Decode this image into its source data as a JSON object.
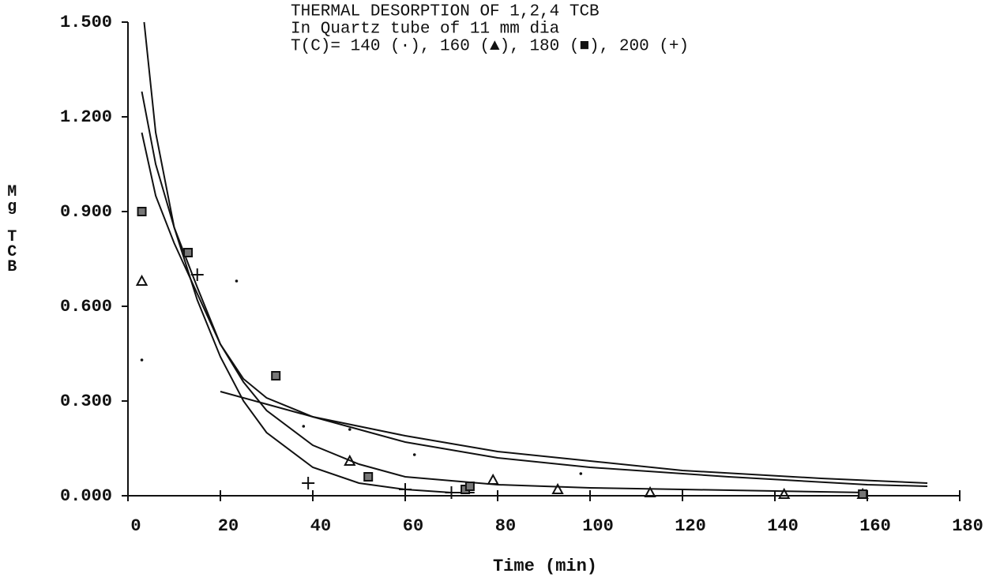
{
  "chart_data": {
    "type": "scatter",
    "title": "THERMAL DESORPTION OF 1,2,4 TCB",
    "subtitle": "In Quartz tube of 11 mm dia",
    "annotation": "T(C)= 140 (·), 160 (▲), 180 (■), 200 (+)",
    "xlabel": "Time (min)",
    "ylabel": "Mg TCB",
    "color": "#111111",
    "xlim": [
      0,
      180
    ],
    "ylim": [
      0,
      1.5
    ],
    "xticks": [
      0,
      20,
      40,
      60,
      80,
      100,
      120,
      140,
      160,
      180
    ],
    "yticks": [
      {
        "value": 0,
        "label": "0.000"
      },
      {
        "value": 0.3,
        "label": "0.300"
      },
      {
        "value": 0.6,
        "label": "0.600"
      },
      {
        "value": 0.9,
        "label": "0.900"
      },
      {
        "value": 1.2,
        "label": "1.200"
      },
      {
        "value": 1.5,
        "label": "1.500"
      }
    ],
    "series": [
      {
        "marker": "dot",
        "x": [
          3,
          23.5,
          38,
          48,
          62,
          98
        ],
        "values": [
          0.43,
          0.68,
          0.22,
          0.21,
          0.13,
          0.07
        ]
      },
      {
        "marker": "triangle",
        "x": [
          3,
          48,
          79,
          93,
          113,
          142,
          159
        ],
        "values": [
          0.68,
          0.11,
          0.05,
          0.02,
          0.01,
          0.005,
          0.005
        ]
      },
      {
        "marker": "square",
        "x": [
          3,
          13,
          32,
          52,
          73,
          74,
          159
        ],
        "values": [
          0.9,
          0.77,
          0.38,
          0.06,
          0.02,
          0.03,
          0.005
        ]
      },
      {
        "marker": "plus",
        "x": [
          15,
          39,
          60,
          70
        ],
        "values": [
          0.7,
          0.04,
          0.02,
          0.01
        ]
      }
    ],
    "fits": [
      {
        "x": [
          3.5,
          6,
          10,
          15,
          20,
          25,
          30,
          40,
          50,
          60,
          70,
          75
        ],
        "values": [
          1.5,
          1.15,
          0.85,
          0.62,
          0.44,
          0.3,
          0.2,
          0.09,
          0.04,
          0.02,
          0.01,
          0.01
        ]
      },
      {
        "x": [
          3,
          6,
          10,
          15,
          20,
          25,
          30,
          40,
          50,
          60,
          80,
          100,
          120,
          140,
          160
        ],
        "values": [
          1.28,
          1.05,
          0.85,
          0.66,
          0.48,
          0.36,
          0.27,
          0.16,
          0.1,
          0.06,
          0.035,
          0.025,
          0.02,
          0.015,
          0.01
        ]
      },
      {
        "x": [
          3,
          6,
          10,
          15,
          20,
          25,
          30,
          40,
          60,
          80,
          100,
          130,
          160,
          173
        ],
        "values": [
          1.15,
          0.95,
          0.8,
          0.64,
          0.48,
          0.37,
          0.31,
          0.25,
          0.17,
          0.12,
          0.09,
          0.06,
          0.035,
          0.03
        ]
      },
      {
        "x": [
          20,
          30,
          40,
          60,
          80,
          100,
          120,
          150,
          173
        ],
        "values": [
          0.33,
          0.29,
          0.25,
          0.19,
          0.14,
          0.11,
          0.08,
          0.055,
          0.04
        ]
      }
    ]
  }
}
